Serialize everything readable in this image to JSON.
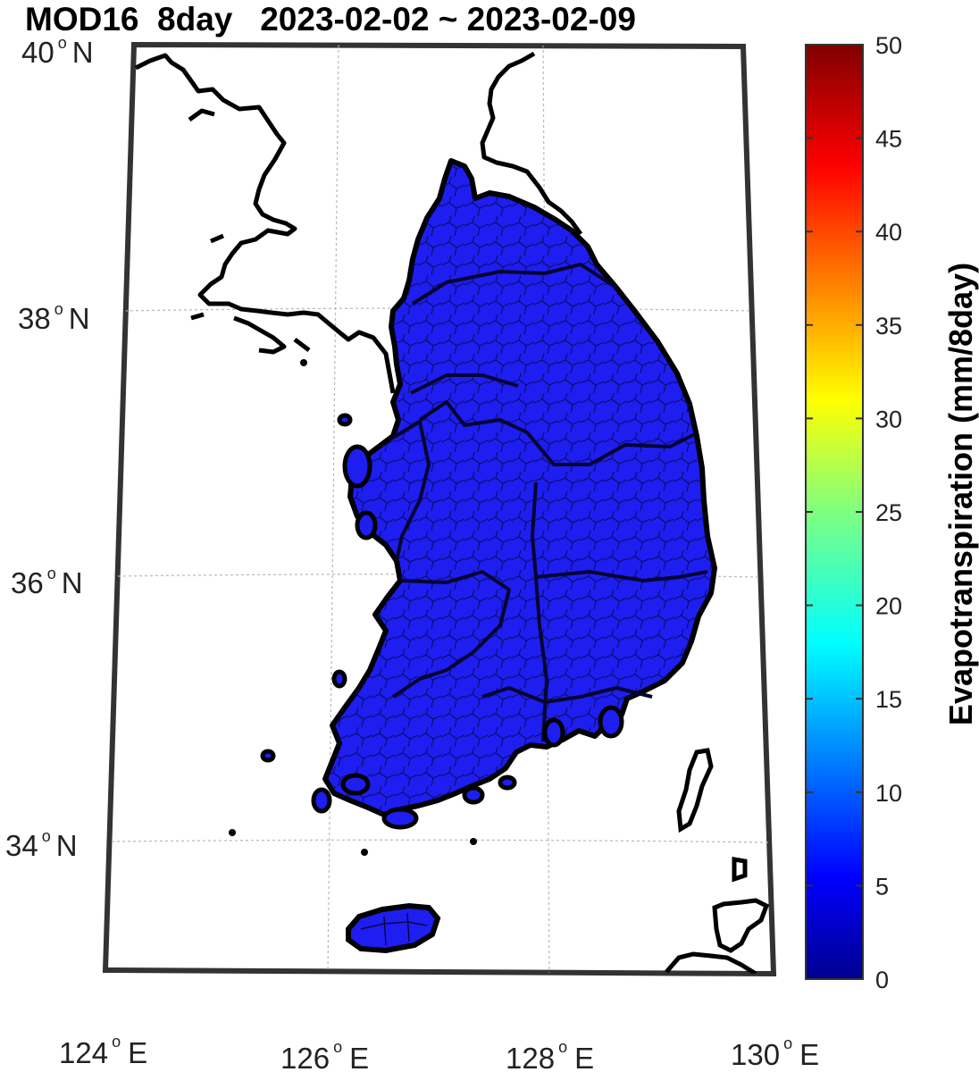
{
  "title": {
    "product": "MOD16",
    "period": "8day",
    "date_range": "2023-02-02 ~ 2023-02-09"
  },
  "map": {
    "lat_labels": [
      {
        "deg": "40",
        "hemi": "N"
      },
      {
        "deg": "38",
        "hemi": "N"
      },
      {
        "deg": "36",
        "hemi": "N"
      },
      {
        "deg": "34",
        "hemi": "N"
      }
    ],
    "lon_labels": [
      {
        "deg": "124",
        "hemi": "E"
      },
      {
        "deg": "126",
        "hemi": "E"
      },
      {
        "deg": "128",
        "hemi": "E"
      },
      {
        "deg": "130",
        "hemi": "E"
      }
    ],
    "fill_color": "#1e1ef0",
    "boundary_color": "#000000",
    "grid_color": "#b0b0b0"
  },
  "colorbar": {
    "label": "Evapotranspiration (mm/8day)",
    "ticks": [
      "0",
      "5",
      "10",
      "15",
      "20",
      "25",
      "30",
      "35",
      "40",
      "45",
      "50"
    ],
    "colormap": "jet",
    "min": 0,
    "max": 50
  }
}
